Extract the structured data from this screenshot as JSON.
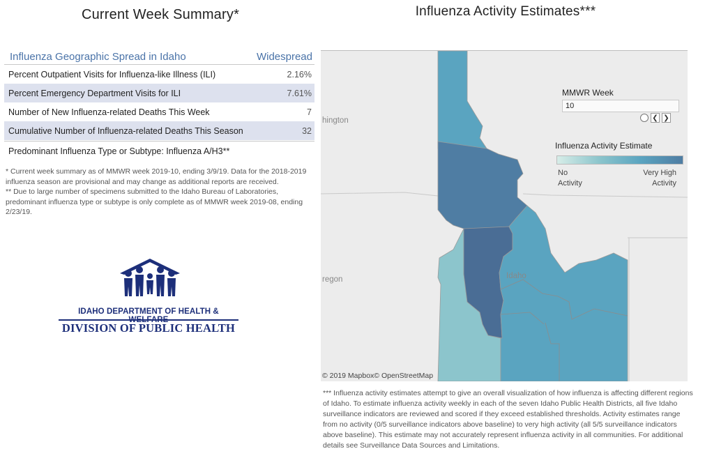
{
  "summary": {
    "title": "Current Week Summary*",
    "header_label": "Influenza Geographic Spread in Idaho",
    "header_value": "Widespread",
    "rows": [
      {
        "label": "Percent Outpatient Visits for Influenza-like Illness (ILI)",
        "value": "2.16%"
      },
      {
        "label": "Percent Emergency Department Visits for ILI",
        "value": "7.61%"
      },
      {
        "label": "Number of New Influenza-related Deaths This Week",
        "value": "7"
      },
      {
        "label": "Cumulative Number of Influenza-related Deaths This Season",
        "value": "32"
      }
    ],
    "predominant": "Predominant Influenza Type or Subtype: Influenza A/H3**",
    "footnote1": "* Current week summary as of MMWR week 2019-10, ending 3/9/19. Data for the 2018-2019 influenza season are provisional and may change as additional reports are received.",
    "footnote2": "** Due to large number of specimens submitted to the Idaho Bureau of Laboratories, predominant influenza type or subtype is only complete as of MMWR week 2019-08, ending 2/23/19."
  },
  "logo": {
    "line1": "IDAHO DEPARTMENT OF HEALTH & WELFARE",
    "line2": "DIVISION OF PUBLIC HEALTH",
    "icon": "people-family-icon",
    "color": "#1d2f7a"
  },
  "map": {
    "title": "Influenza Activity Estimates***",
    "place_labels": {
      "washington": "hington",
      "oregon": "regon",
      "idaho": "Idaho"
    },
    "attribution": "© 2019 Mapbox© OpenStreetMap",
    "filter_label": "MMWR Week",
    "filter_value": "10",
    "legend_title": "Influenza Activity Estimate",
    "legend_low": "No Activity",
    "legend_high": "Very High Activity",
    "colors": {
      "low": "#d7ede8",
      "mid_low": "#8cc5cc",
      "mid": "#5aa4c0",
      "high": "#4f7da3",
      "very_high": "#4a6d95"
    },
    "note": "*** Influenza activity estimates attempt to give an overall visualization of how influenza is affecting different regions of Idaho. To estimate influenza activity weekly in each of the seven Idaho Public Health Districts, all five Idaho surveillance indicators are reviewed and scored if they exceed established thresholds. Activity estimates range from no activity (0/5 surveillance indicators above baseline) to very high activity (all 5/5 surveillance indicators above baseline). This estimate may not accurately represent influenza activity in all communities. For additional details see Surveillance Data Sources and Limitations."
  }
}
